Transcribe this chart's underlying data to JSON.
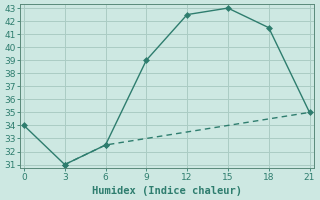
{
  "line1_x": [
    0,
    3,
    6,
    9,
    12,
    15,
    18,
    21
  ],
  "line1_y": [
    34,
    31,
    32.5,
    39,
    42.5,
    43,
    41.5,
    35
  ],
  "line2_x": [
    3,
    6,
    9,
    12,
    15,
    18,
    21
  ],
  "line2_y": [
    31,
    32.5,
    33.0,
    33.5,
    34.0,
    34.5,
    35.0
  ],
  "color": "#2e7d6e",
  "bg_color": "#cde8e2",
  "grid_color": "#aaccC4",
  "spine_color": "#5a8a7a",
  "xlabel": "Humidex (Indice chaleur)",
  "xlim": [
    0,
    21
  ],
  "ylim": [
    31,
    43
  ],
  "xticks": [
    0,
    3,
    6,
    9,
    12,
    15,
    18,
    21
  ],
  "yticks": [
    31,
    32,
    33,
    34,
    35,
    36,
    37,
    38,
    39,
    40,
    41,
    42,
    43
  ],
  "marker": "D",
  "markersize": 3,
  "linewidth": 1.0,
  "tick_labelsize": 6.5,
  "xlabel_fontsize": 7.5
}
